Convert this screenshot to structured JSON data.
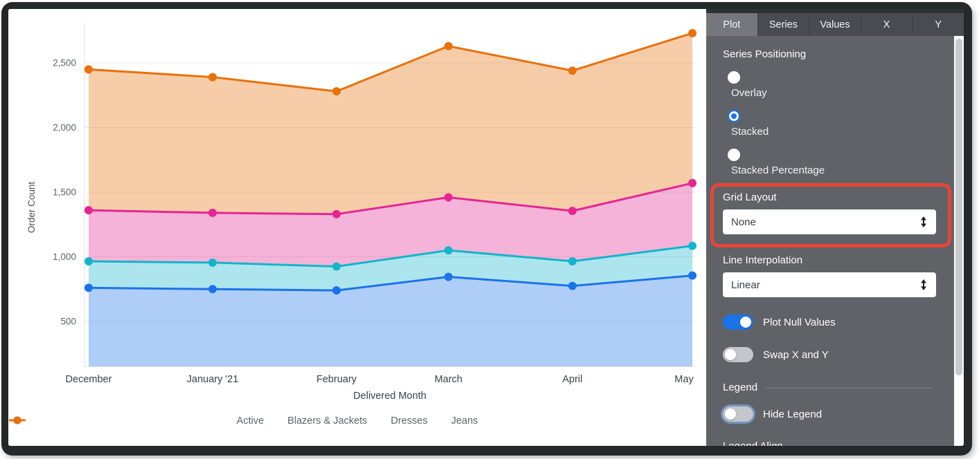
{
  "chart_data": {
    "type": "area",
    "stacked": true,
    "xlabel": "Delivered Month",
    "ylabel": "Order Count",
    "categories": [
      "December",
      "January '21",
      "February",
      "March",
      "April",
      "May"
    ],
    "x_day_offsets": [
      0,
      31,
      62,
      90,
      121,
      151
    ],
    "series": [
      {
        "name": "Active",
        "color": "#1A73E8",
        "values": [
          760,
          750,
          740,
          845,
          775,
          855
        ]
      },
      {
        "name": "Blazers & Jackets",
        "color": "#12B5CB",
        "values": [
          205,
          205,
          185,
          205,
          190,
          230
        ]
      },
      {
        "name": "Dresses",
        "color": "#E52592",
        "values": [
          395,
          385,
          405,
          410,
          390,
          485
        ]
      },
      {
        "name": "Jeans",
        "color": "#E8710A",
        "values": [
          1090,
          1050,
          950,
          1170,
          1085,
          1160
        ]
      }
    ],
    "y_ticks": [
      {
        "value": 500,
        "label": "500"
      },
      {
        "value": 1000,
        "label": "1,000"
      },
      {
        "value": 1500,
        "label": "1,500"
      },
      {
        "value": 2000,
        "label": "2,000"
      },
      {
        "value": 2500,
        "label": "2,500"
      }
    ],
    "ylim": [
      175,
      2870
    ],
    "grid": true,
    "legend_position": "bottom",
    "fill_opacity": 0.35
  },
  "panel": {
    "tabs": [
      {
        "label": "Plot"
      },
      {
        "label": "Series"
      },
      {
        "label": "Values"
      },
      {
        "label": "X"
      },
      {
        "label": "Y"
      }
    ],
    "series_positioning": {
      "label": "Series Positioning",
      "options": [
        {
          "label": "Overlay"
        },
        {
          "label": "Stacked"
        },
        {
          "label": "Stacked Percentage"
        }
      ],
      "selected": "Stacked"
    },
    "grid_layout": {
      "label": "Grid Layout",
      "value": "None",
      "highlighted": true
    },
    "line_interpolation": {
      "label": "Line Interpolation",
      "value": "Linear"
    },
    "plot_null_values": {
      "label": "Plot Null Values",
      "on": true
    },
    "swap_x_y": {
      "label": "Swap X and Y",
      "on": false
    },
    "legend_section": {
      "header": "Legend",
      "hide_legend": {
        "label": "Hide Legend",
        "on": false
      },
      "legend_align_label": "Legend Align"
    }
  },
  "colors": {
    "accent": "#1A73E8",
    "annotation_red": "#E8453A",
    "panel_bg": "#5F6368",
    "tabbar_bg": "#494B51",
    "active_tab_bg": "#75777D"
  }
}
